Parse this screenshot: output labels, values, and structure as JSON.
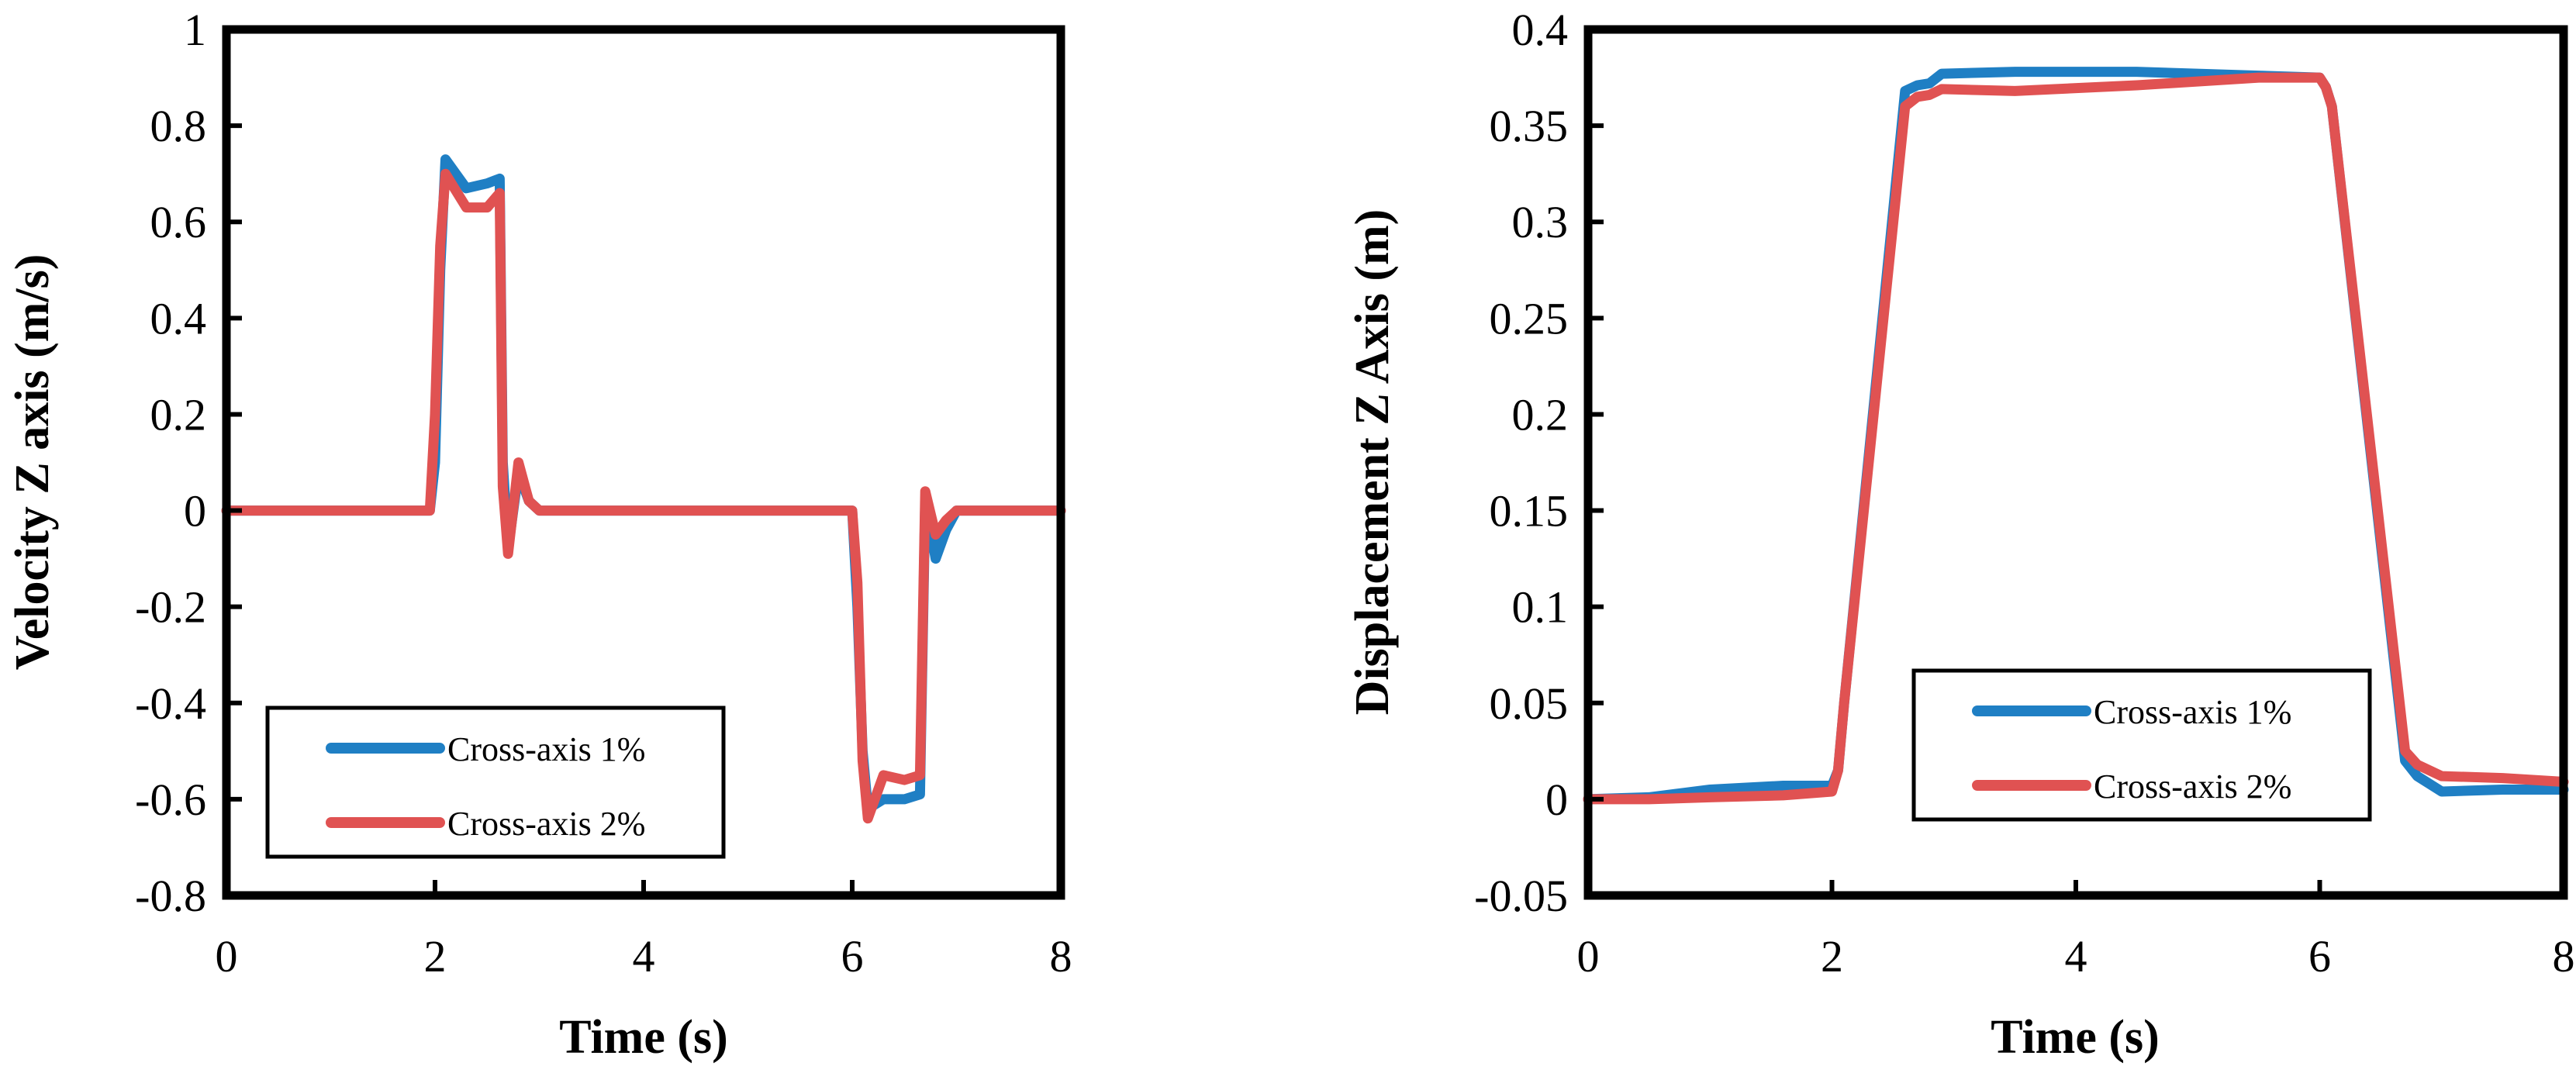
{
  "colors": {
    "cross_axis_1": "#1f7fc4",
    "cross_axis_2": "#e05252",
    "axis": "#000000"
  },
  "chart_data": [
    {
      "type": "line",
      "title": "",
      "xlabel": "Time (s)",
      "ylabel": "Velocity Z axis (m/s)",
      "xlim": [
        0,
        8
      ],
      "ylim": [
        -0.8,
        1
      ],
      "xticks": [
        "0",
        "2",
        "4",
        "6",
        "8"
      ],
      "yticks": [
        "1",
        "0.8",
        "0.6",
        "0.4",
        "0.2",
        "0",
        "-0.2",
        "-0.4",
        "-0.6",
        "-0.8"
      ],
      "grid": false,
      "legend_position": "bottom-left",
      "legend": [
        "Cross-axis 1%",
        "Cross-axis 2%"
      ],
      "series": [
        {
          "name": "Cross-axis 1%",
          "x": [
            0,
            1.0,
            1.95,
            2.0,
            2.05,
            2.1,
            2.3,
            2.5,
            2.62,
            2.65,
            2.7,
            2.8,
            2.9,
            3.0,
            4.0,
            5.0,
            6.0,
            6.05,
            6.1,
            6.15,
            6.3,
            6.5,
            6.65,
            6.7,
            6.8,
            6.9,
            7.0,
            8.0
          ],
          "y": [
            0,
            0,
            0,
            0.1,
            0.5,
            0.73,
            0.67,
            0.68,
            0.69,
            0.1,
            -0.08,
            0.08,
            0.02,
            0,
            0,
            0,
            0,
            -0.2,
            -0.5,
            -0.62,
            -0.6,
            -0.6,
            -0.59,
            0.02,
            -0.1,
            -0.04,
            0,
            0
          ]
        },
        {
          "name": "Cross-axis 2%",
          "x": [
            0,
            1.0,
            1.95,
            2.0,
            2.05,
            2.1,
            2.3,
            2.5,
            2.62,
            2.65,
            2.7,
            2.8,
            2.9,
            3.0,
            4.0,
            5.0,
            6.0,
            6.05,
            6.1,
            6.15,
            6.3,
            6.5,
            6.65,
            6.7,
            6.8,
            6.9,
            7.0,
            8.0
          ],
          "y": [
            0,
            0,
            0,
            0.2,
            0.55,
            0.7,
            0.63,
            0.63,
            0.66,
            0.05,
            -0.09,
            0.1,
            0.02,
            0,
            0,
            0,
            0,
            -0.15,
            -0.52,
            -0.64,
            -0.55,
            -0.56,
            -0.55,
            0.04,
            -0.05,
            -0.02,
            0,
            0
          ]
        }
      ]
    },
    {
      "type": "line",
      "title": "",
      "xlabel": "Time (s)",
      "ylabel": "Displacement Z Axis (m)",
      "xlim": [
        0,
        8
      ],
      "ylim": [
        -0.05,
        0.4
      ],
      "xticks": [
        "0",
        "2",
        "4",
        "6",
        "8"
      ],
      "yticks": [
        "0.4",
        "0.35",
        "0.3",
        "0.25",
        "0.2",
        "0.15",
        "0.1",
        "0.05",
        "0",
        "-0.05"
      ],
      "grid": false,
      "legend_position": "center-right",
      "legend": [
        "Cross-axis 1%",
        "Cross-axis 2%"
      ],
      "series": [
        {
          "name": "Cross-axis 1%",
          "x": [
            0,
            0.5,
            1.0,
            1.6,
            2.0,
            2.05,
            2.1,
            2.6,
            2.7,
            2.8,
            2.9,
            3.5,
            4.5,
            5.5,
            6.0,
            6.05,
            6.1,
            6.7,
            6.8,
            7.0,
            7.5,
            8.0
          ],
          "y": [
            0,
            0.001,
            0.005,
            0.007,
            0.007,
            0.015,
            0.05,
            0.368,
            0.371,
            0.372,
            0.377,
            0.378,
            0.378,
            0.376,
            0.375,
            0.37,
            0.36,
            0.02,
            0.012,
            0.004,
            0.005,
            0.005
          ]
        },
        {
          "name": "Cross-axis 2%",
          "x": [
            0,
            0.5,
            1.0,
            1.6,
            2.0,
            2.05,
            2.1,
            2.6,
            2.7,
            2.8,
            2.9,
            3.5,
            4.5,
            5.5,
            6.0,
            6.05,
            6.1,
            6.7,
            6.8,
            7.0,
            7.5,
            8.0
          ],
          "y": [
            0,
            0,
            0.001,
            0.002,
            0.004,
            0.015,
            0.05,
            0.36,
            0.365,
            0.366,
            0.369,
            0.368,
            0.371,
            0.375,
            0.375,
            0.37,
            0.36,
            0.025,
            0.018,
            0.012,
            0.011,
            0.009
          ]
        }
      ]
    }
  ]
}
